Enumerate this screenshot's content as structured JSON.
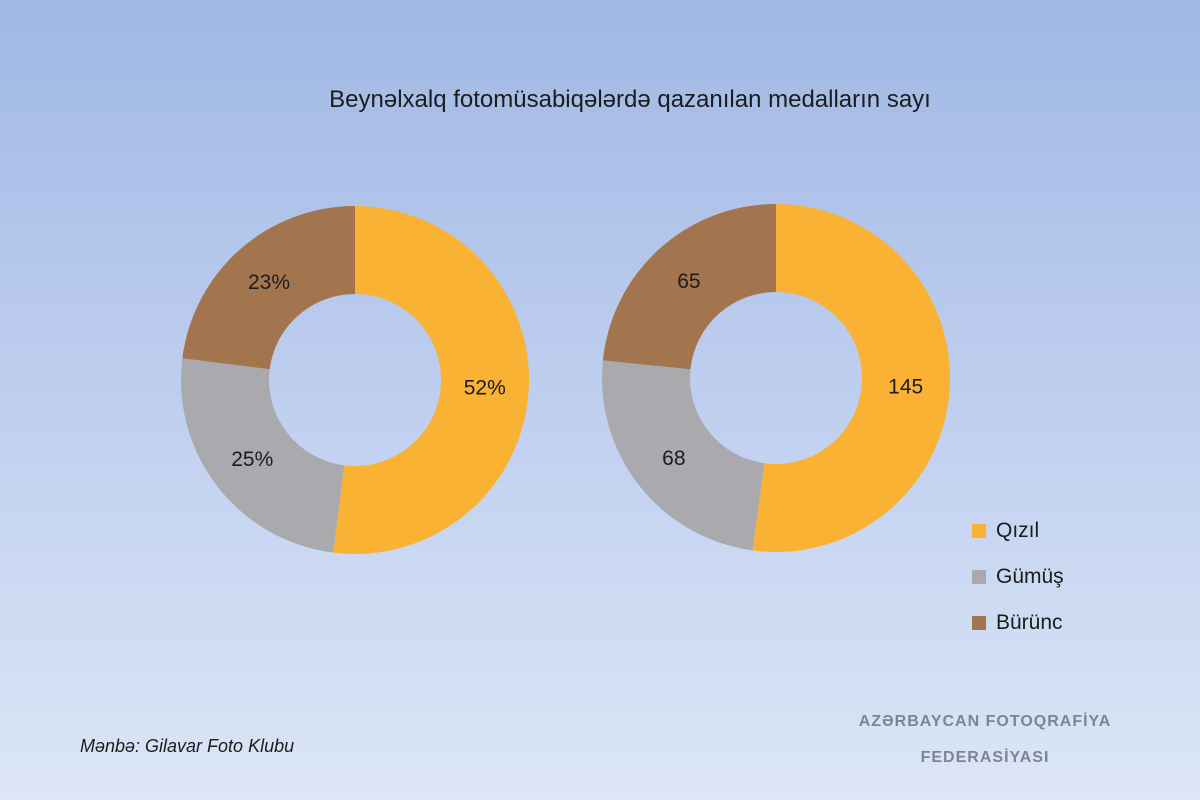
{
  "title": "Beynəlxalq fotomüsabiqələrdə qazanılan medalların sayı",
  "source": "Mənbə: Gilavar Foto Klubu",
  "organization": [
    "AZƏRBAYCAN FOTOQRAFİYA",
    "FEDERASİYASI"
  ],
  "legend": [
    {
      "label": "Qızıl",
      "color": "#f9b234"
    },
    {
      "label": "Gümüş",
      "color": "#a9a9ae"
    },
    {
      "label": "Bürünc",
      "color": "#a3754e"
    }
  ],
  "chart_data": [
    {
      "type": "pie",
      "donut": true,
      "categories": [
        "Qızıl",
        "Gümüş",
        "Bürünc"
      ],
      "values": [
        52,
        25,
        23
      ],
      "labels": [
        "52%",
        "25%",
        "23%"
      ],
      "colors": [
        "#f9b234",
        "#a9a9ae",
        "#a3754e"
      ]
    },
    {
      "type": "pie",
      "donut": true,
      "categories": [
        "Qızıl",
        "Gümüş",
        "Bürünc"
      ],
      "values": [
        145,
        68,
        65
      ],
      "labels": [
        "145",
        "68",
        "65"
      ],
      "colors": [
        "#f9b234",
        "#a9a9ae",
        "#a3754e"
      ]
    }
  ]
}
